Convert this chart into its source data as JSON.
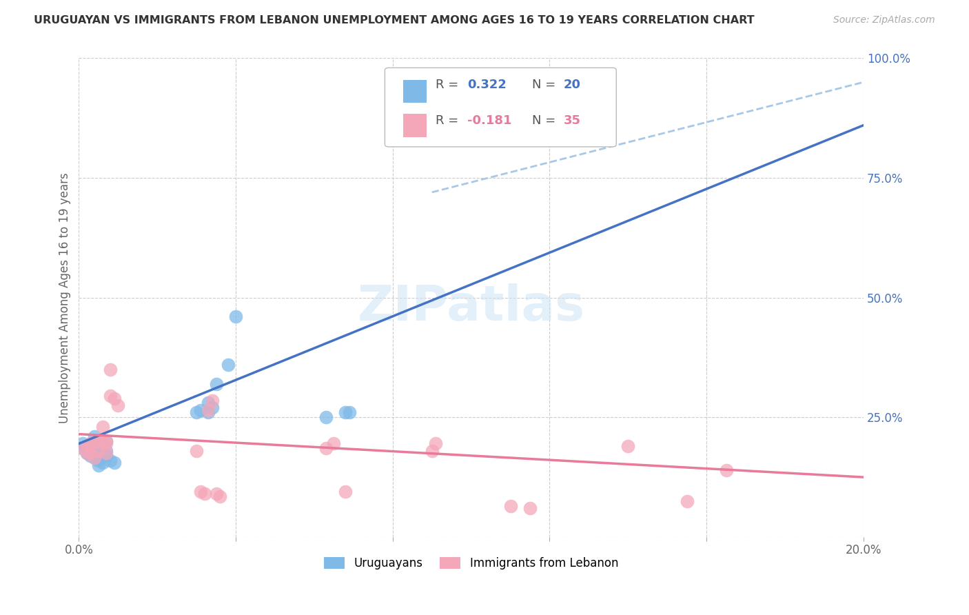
{
  "title": "URUGUAYAN VS IMMIGRANTS FROM LEBANON UNEMPLOYMENT AMONG AGES 16 TO 19 YEARS CORRELATION CHART",
  "source": "Source: ZipAtlas.com",
  "ylabel": "Unemployment Among Ages 16 to 19 years",
  "y_ticks": [
    0.0,
    0.25,
    0.5,
    0.75,
    1.0
  ],
  "y_tick_labels": [
    "",
    "25.0%",
    "50.0%",
    "75.0%",
    "100.0%"
  ],
  "x_range": [
    0.0,
    0.2
  ],
  "y_range": [
    0.0,
    1.0
  ],
  "uruguayan_color": "#7EB9E8",
  "lebanon_color": "#F4A7B9",
  "trend_blue_color": "#4472C4",
  "trend_dashed_color": "#A8C8E8",
  "trend_pink_color": "#E87A9A",
  "watermark": "ZIPatlas",
  "uruguayan_x": [
    0.001,
    0.002,
    0.003,
    0.003,
    0.004,
    0.004,
    0.005,
    0.005,
    0.006,
    0.007,
    0.007,
    0.008,
    0.009,
    0.03,
    0.031,
    0.033,
    0.033,
    0.034,
    0.063,
    0.035,
    0.038,
    0.04,
    0.068,
    0.069,
    0.002,
    0.001,
    0.005,
    0.004,
    0.006,
    0.007
  ],
  "uruguayan_y": [
    0.195,
    0.185,
    0.19,
    0.17,
    0.175,
    0.21,
    0.18,
    0.16,
    0.155,
    0.2,
    0.17,
    0.16,
    0.155,
    0.26,
    0.265,
    0.26,
    0.28,
    0.27,
    0.25,
    0.32,
    0.36,
    0.46,
    0.26,
    0.26,
    0.175,
    0.185,
    0.15,
    0.165,
    0.19,
    0.18
  ],
  "lebanon_x": [
    0.001,
    0.002,
    0.002,
    0.003,
    0.003,
    0.004,
    0.004,
    0.005,
    0.005,
    0.006,
    0.006,
    0.007,
    0.007,
    0.007,
    0.008,
    0.008,
    0.009,
    0.01,
    0.03,
    0.031,
    0.032,
    0.033,
    0.034,
    0.035,
    0.036,
    0.063,
    0.065,
    0.068,
    0.09,
    0.091,
    0.11,
    0.115,
    0.14,
    0.155,
    0.165
  ],
  "lebanon_y": [
    0.185,
    0.19,
    0.175,
    0.175,
    0.195,
    0.165,
    0.2,
    0.18,
    0.2,
    0.195,
    0.23,
    0.195,
    0.2,
    0.175,
    0.295,
    0.35,
    0.29,
    0.275,
    0.18,
    0.095,
    0.09,
    0.265,
    0.285,
    0.09,
    0.085,
    0.185,
    0.195,
    0.095,
    0.18,
    0.195,
    0.065,
    0.06,
    0.19,
    0.075,
    0.14
  ],
  "blue_trend_x": [
    0.0,
    0.2
  ],
  "blue_trend_y": [
    0.195,
    0.86
  ],
  "dashed_trend_x": [
    0.09,
    0.2
  ],
  "dashed_trend_y": [
    0.72,
    0.95
  ],
  "pink_trend_x": [
    0.0,
    0.2
  ],
  "pink_trend_y": [
    0.215,
    0.125
  ]
}
